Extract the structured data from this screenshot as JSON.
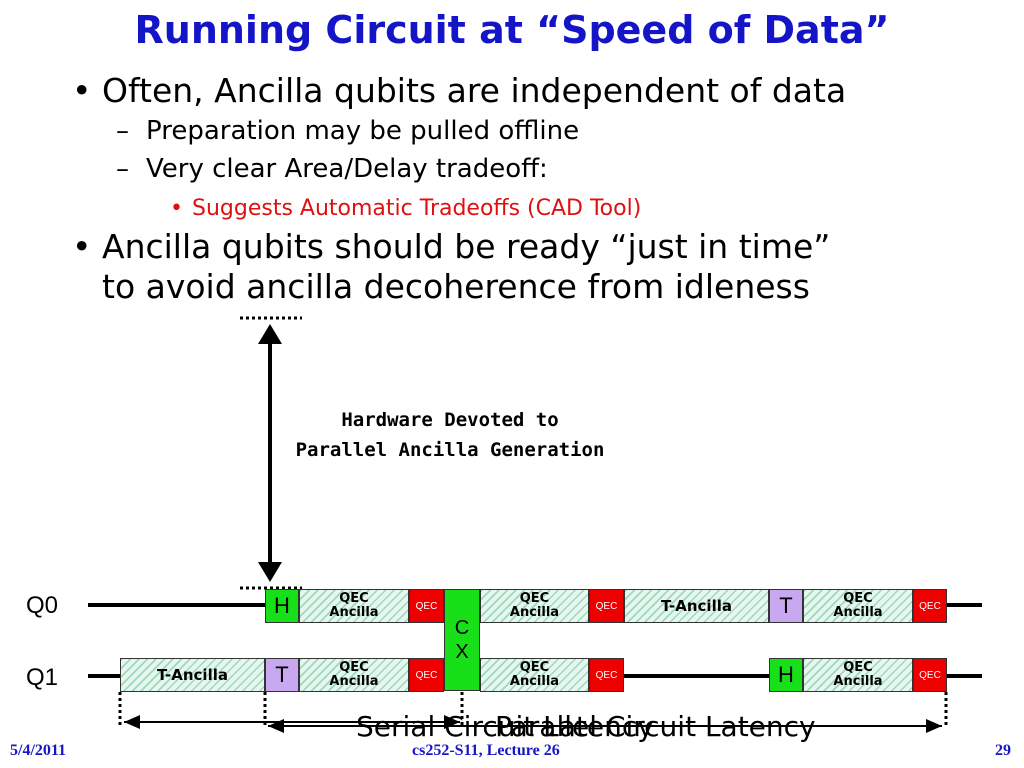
{
  "title": "Running Circuit at “Speed of Data”",
  "bullets": {
    "b1": "Often, Ancilla qubits are independent of data",
    "b1_sub1": "Preparation may be pulled offline",
    "b1_sub2": "Very clear Area/Delay tradeoff:",
    "b1_sub2_sub1": "Suggests Automatic Tradeoffs (CAD Tool)",
    "b2_line1": "Ancilla qubits should be ready “just in time”",
    "b2_line2": "to avoid ancilla decoherence from idleness",
    "mark_l1": "•",
    "mark_l2": "–",
    "mark_l3": "•"
  },
  "diagram": {
    "hw_label_line1": "Hardware Devoted to",
    "hw_label_line2": "Parallel Ancilla Generation",
    "q0": "Q0",
    "q1": "Q1",
    "qec_ancilla_1": "QEC",
    "qec_ancilla_2": "Ancilla",
    "qec": "QEC",
    "t_ancilla": "T-Ancilla",
    "gate_h": "H",
    "gate_t": "T",
    "gate_cx_c": "C",
    "gate_cx_x": "X",
    "serial_latency": "Serial Circuit Latency",
    "parallel_latency": "Parallel Circuit Latency"
  },
  "footer": {
    "date": "5/4/2011",
    "course": "cs252-S11, Lecture 26",
    "page": "29"
  },
  "colors": {
    "title": "#1515c8",
    "highlight_text": "#e01010",
    "qec": "#ee0000",
    "gate_green": "#18e018",
    "gate_purple": "#c8a8f0",
    "ancilla_hatch": "#9fd8bb"
  }
}
